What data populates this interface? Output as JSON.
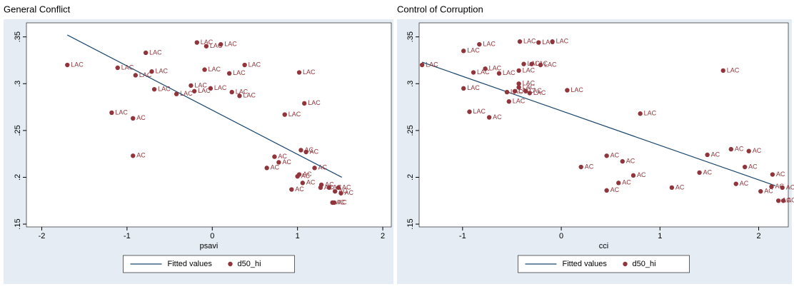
{
  "chart_data": [
    {
      "type": "scatter",
      "title": "General Conflict",
      "x_label": "psavi",
      "xlim": [
        -2.18,
        2.1
      ],
      "ylim": [
        0.147,
        0.365
      ],
      "xticks": [
        -2,
        -1,
        0,
        1,
        2
      ],
      "yticks": [
        {
          "value": 0.15,
          "label": ".15"
        },
        {
          "value": 0.2,
          "label": ".2"
        },
        {
          "value": 0.25,
          "label": ".25"
        },
        {
          "value": 0.3,
          "label": ".3"
        },
        {
          "value": 0.35,
          "label": ".35"
        }
      ],
      "series": [
        {
          "name": "Fitted values",
          "type": "line",
          "color": "#1a476f",
          "x": [
            -1.7,
            1.52
          ],
          "values": [
            0.352,
            0.2
          ]
        },
        {
          "name": "d50_hi",
          "type": "scatter",
          "color": "#90353b",
          "x": [
            -1.7,
            -1.11,
            -0.78,
            -0.18,
            -0.07,
            0.1,
            -0.71,
            -0.9,
            -0.09,
            0.38,
            0.2,
            1.02,
            -0.25,
            -0.02,
            -0.68,
            -0.21,
            -0.42,
            0.23,
            0.32,
            1.08,
            -1.18,
            0.85,
            -0.93,
            -0.93,
            1.04,
            1.1,
            0.73,
            0.78,
            1.2,
            0.64,
            1.02,
            1.0,
            1.06,
            0.93,
            1.28,
            1.37,
            1.48,
            1.27,
            1.44,
            1.51,
            1.41,
            1.43
          ],
          "values": [
            0.32,
            0.317,
            0.333,
            0.344,
            0.34,
            0.342,
            0.313,
            0.309,
            0.315,
            0.32,
            0.311,
            0.312,
            0.298,
            0.295,
            0.294,
            0.292,
            0.289,
            0.291,
            0.287,
            0.279,
            0.269,
            0.267,
            0.263,
            0.223,
            0.229,
            0.227,
            0.222,
            0.216,
            0.21,
            0.21,
            0.203,
            0.201,
            0.194,
            0.187,
            0.192,
            0.189,
            0.189,
            0.189,
            0.185,
            0.183,
            0.173,
            0.173
          ],
          "labels": [
            "LAC",
            "LAC",
            "LAC",
            "LAC",
            "LAC",
            "LAC",
            "LAC",
            "LAC",
            "LAC",
            "LAC",
            "LAC",
            "LAC",
            "LAC",
            "LAC",
            "LAC",
            "LAC",
            "LAC",
            "LAC",
            "LAC",
            "LAC",
            "LAC",
            "LAC",
            "AC",
            "AC",
            "AC",
            "AC",
            "AC",
            "AC",
            "AC",
            "AC",
            "AC",
            "AC",
            "AC",
            "AC",
            "AC",
            "AC",
            "AC",
            "AC",
            "AC",
            "AC",
            "AC",
            "AC"
          ]
        }
      ]
    },
    {
      "type": "scatter",
      "title": "Control of Corruption",
      "x_label": "cci",
      "xlim": [
        -1.44,
        2.3
      ],
      "ylim": [
        0.147,
        0.365
      ],
      "xticks": [
        -1,
        0,
        1,
        2
      ],
      "yticks": [
        {
          "value": 0.15,
          "label": ".15"
        },
        {
          "value": 0.2,
          "label": ".2"
        },
        {
          "value": 0.25,
          "label": ".25"
        },
        {
          "value": 0.3,
          "label": ".3"
        },
        {
          "value": 0.35,
          "label": ".35"
        }
      ],
      "series": [
        {
          "name": "Fitted values",
          "type": "line",
          "color": "#1a476f",
          "x": [
            -1.41,
            2.17
          ],
          "values": [
            0.323,
            0.191
          ]
        },
        {
          "name": "d50_hi",
          "type": "scatter",
          "color": "#90353b",
          "x": [
            -1.41,
            -0.99,
            -0.83,
            -0.42,
            -0.23,
            -0.09,
            -0.89,
            -0.77,
            -0.63,
            -0.43,
            -0.38,
            -0.3,
            -0.21,
            -0.43,
            -0.43,
            -0.47,
            -0.36,
            -0.55,
            -0.32,
            0.06,
            -0.99,
            -0.53,
            1.64,
            -0.93,
            -0.73,
            0.8,
            0.46,
            0.62,
            0.2,
            0.73,
            0.46,
            0.58,
            1.12,
            1.4,
            1.48,
            1.72,
            1.9,
            1.86,
            2.14,
            1.77,
            2.02,
            2.13,
            2.24,
            2.2,
            2.25
          ],
          "values": [
            0.32,
            0.335,
            0.342,
            0.345,
            0.344,
            0.345,
            0.312,
            0.316,
            0.311,
            0.314,
            0.321,
            0.321,
            0.32,
            0.3,
            0.296,
            0.292,
            0.292,
            0.291,
            0.29,
            0.293,
            0.295,
            0.281,
            0.314,
            0.27,
            0.264,
            0.268,
            0.223,
            0.217,
            0.211,
            0.202,
            0.186,
            0.194,
            0.189,
            0.205,
            0.224,
            0.23,
            0.228,
            0.211,
            0.203,
            0.193,
            0.185,
            0.19,
            0.189,
            0.175,
            0.175
          ],
          "labels": [
            "LAC",
            "LAC",
            "LAC",
            "LAC",
            "LAC",
            "LAC",
            "LAC",
            "LAC",
            "LAC",
            "LAC",
            "LAC",
            "LAC",
            "LAC",
            "LAC",
            "LAC",
            "LAC",
            "LAC",
            "LAC",
            "LAC",
            "LAC",
            "LAC",
            "LAC",
            "LAC",
            "LAC",
            "AC",
            "LAC",
            "AC",
            "AC",
            "AC",
            "AC",
            "AC",
            "AC",
            "AC",
            "AC",
            "AC",
            "AC",
            "AC",
            "AC",
            "AC",
            "AC",
            "AC",
            "AC",
            "AC",
            "AC",
            "AC"
          ]
        }
      ]
    }
  ]
}
